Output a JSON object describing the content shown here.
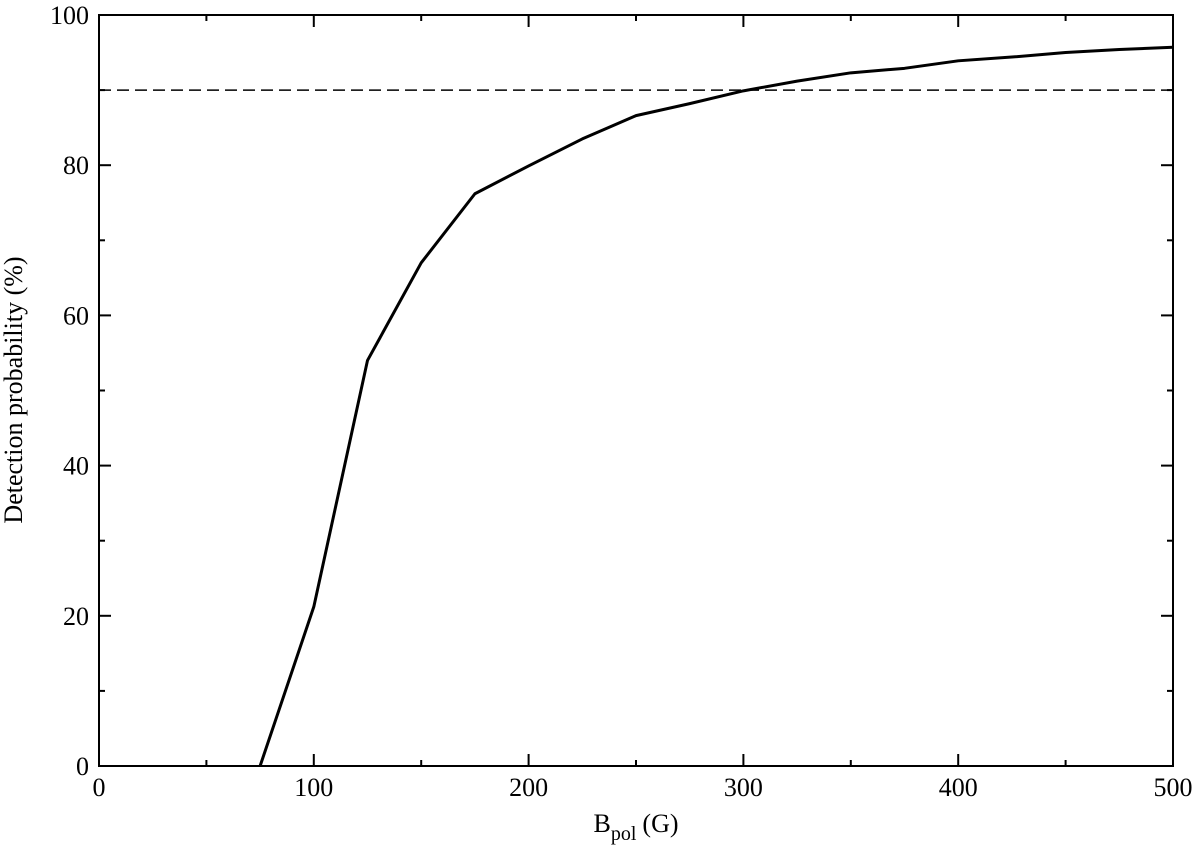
{
  "chart_data": {
    "type": "line",
    "x": [
      75,
      100,
      125,
      150,
      175,
      200,
      225,
      250,
      275,
      300,
      325,
      350,
      375,
      400,
      425,
      450,
      475,
      500
    ],
    "values": [
      0,
      21.2,
      54,
      67,
      76.2,
      79.9,
      83.5,
      86.6,
      88.2,
      89.9,
      91.2,
      92.3,
      92.9,
      93.9,
      94.4,
      95.0,
      95.4,
      95.7
    ],
    "color": "#000000",
    "xlim": [
      0,
      500
    ],
    "xticks": [
      0,
      100,
      200,
      300,
      400,
      500
    ],
    "xminorticks": [
      50,
      150,
      250,
      350,
      450
    ],
    "ylim": [
      0,
      100
    ],
    "yticks": [
      0,
      20,
      40,
      60,
      80,
      100
    ],
    "yminorticks": [
      10,
      30,
      50,
      70,
      90
    ],
    "xlabel_parts": [
      "B",
      "pol",
      "(G)"
    ],
    "ylabel": "Detection probability (%)",
    "hline": 90
  }
}
